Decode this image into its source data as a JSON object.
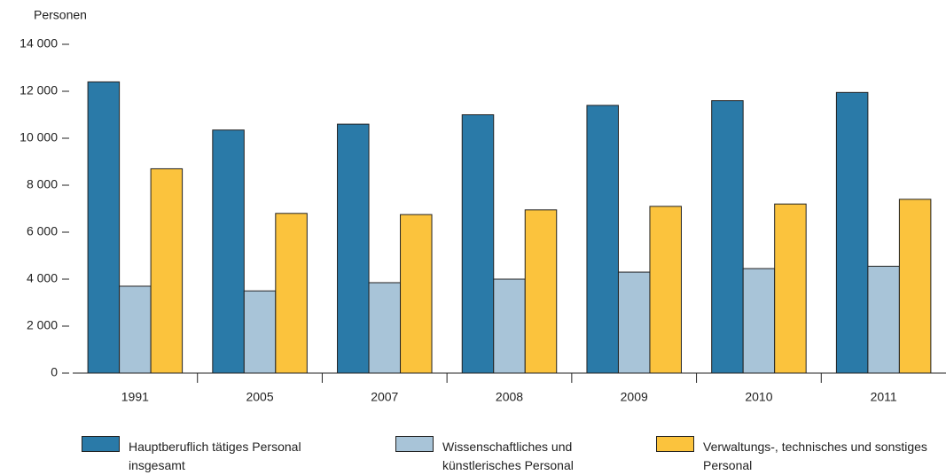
{
  "chart_data": {
    "type": "bar",
    "y_axis_label": "Personen",
    "categories": [
      "1991",
      "2005",
      "2007",
      "2008",
      "2009",
      "2010",
      "2011"
    ],
    "series": [
      {
        "name": "Hauptberuflich tätiges Personal insgesamt",
        "color": "#2a7aa8",
        "values": [
          12400,
          10350,
          10600,
          11000,
          11400,
          11600,
          11950
        ]
      },
      {
        "name": "Wissenschaftliches und künstlerisches Personal",
        "color": "#a8c4d8",
        "values": [
          3700,
          3500,
          3850,
          4000,
          4300,
          4450,
          4550
        ]
      },
      {
        "name": "Verwaltungs-, technisches und sonstiges Personal",
        "color": "#fbc33d",
        "values": [
          8700,
          6800,
          6750,
          6950,
          7100,
          7200,
          7400
        ]
      }
    ],
    "ylim": [
      0,
      14000
    ],
    "yticks": [
      0,
      {
        "value": 2000,
        "label": "2 000"
      },
      {
        "value": 4000,
        "label": "4 000"
      },
      {
        "value": 6000,
        "label": "6 000"
      },
      {
        "value": 8000,
        "label": "8 000"
      },
      {
        "value": 10000,
        "label": "10 000"
      },
      {
        "value": 12000,
        "label": "12 000"
      },
      {
        "value": 14000,
        "label": "14 000"
      }
    ]
  }
}
